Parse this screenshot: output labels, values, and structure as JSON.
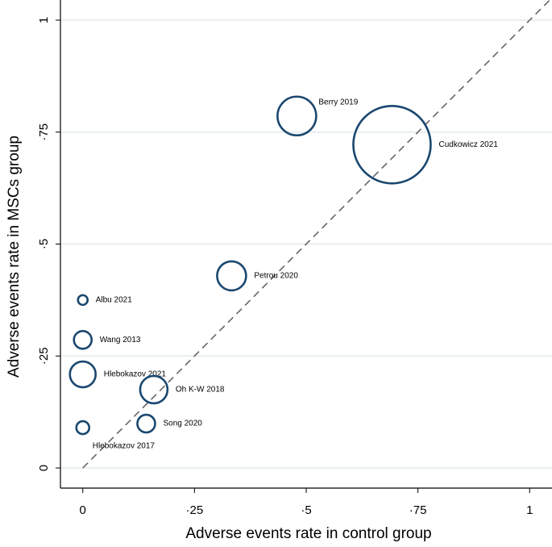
{
  "chart_data": {
    "type": "scatter",
    "x_label": "Adverse events rate in control group",
    "y_label": "Adverse events rate in MSCs group",
    "labels": [
      "Berry 2019",
      "Cudkowicz 2021",
      "Petrou 2020",
      "Albu 2021",
      "Wang 2013",
      "Hlebokazov 2021",
      "Oh K-W 2018",
      "Song 2020",
      "Hlebokazov 2017"
    ],
    "x": [
      0.479,
      0.692,
      0.333,
      0,
      0,
      0,
      0.159,
      0.142,
      0
    ],
    "values": [
      0.786,
      0.722,
      0.429,
      0.375,
      0.286,
      0.209,
      0.175,
      0.099,
      0.09
    ],
    "sizes": [
      576,
      2304,
      324,
      36,
      121,
      256,
      289,
      121,
      64
    ],
    "color": "#1a476f",
    "xlim": [
      -0.05,
      1.05
    ],
    "ylim": [
      -0.045,
      1.045
    ],
    "xticks": [
      0,
      {
        "value": 0.25,
        "label": "·25"
      },
      {
        "value": 0.5,
        "label": "·5"
      },
      {
        "value": 0.75,
        "label": "·75"
      },
      1
    ],
    "yticks": [
      0,
      {
        "value": 0.25,
        "label": "·25"
      },
      {
        "value": 0.5,
        "label": "·5"
      },
      {
        "value": 0.75,
        "label": "·75"
      },
      1
    ],
    "grid": true,
    "diagonal": true
  }
}
